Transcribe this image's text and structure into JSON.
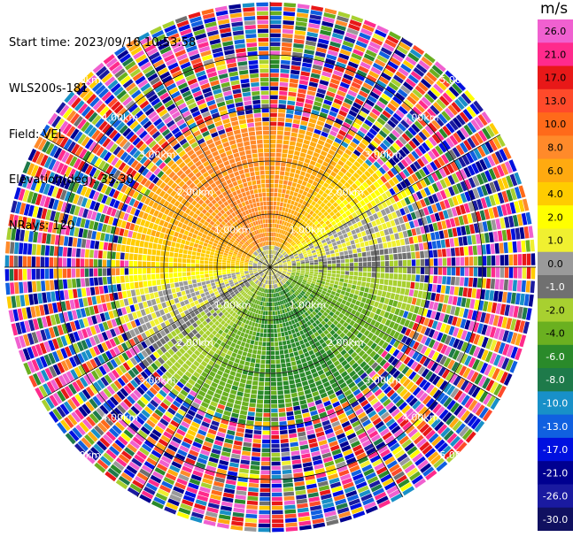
{
  "info": {
    "start_time": "Start time: 2023/09/16 10:53:58",
    "instrument": "WLS200s-181",
    "field": "Field: VEL",
    "elevation": "Elevation(deg): 35.30",
    "nrays": "NRays: 120"
  },
  "colorbar": {
    "unit": "m/s",
    "ticks": [
      "26.0",
      "21.0",
      "17.0",
      "13.0",
      "10.0",
      "8.0",
      "6.0",
      "4.0",
      "2.0",
      "1.0",
      "0.0",
      "-1.0",
      "-2.0",
      "-4.0",
      "-6.0",
      "-8.0",
      "-10.0",
      "-13.0",
      "-17.0",
      "-21.0",
      "-26.0",
      "-30.0"
    ],
    "colors": [
      "#f060d0",
      "#ff2a8c",
      "#e81818",
      "#ff4a2a",
      "#ff6a1a",
      "#ff8a2a",
      "#ffaa10",
      "#ffcc00",
      "#ffff00",
      "#f0f030",
      "#9a9a9a",
      "#707070",
      "#a8d030",
      "#6ab020",
      "#2a8a2a",
      "#1e7a4a",
      "#1890c8",
      "#1060e0",
      "#0010e0",
      "#000090",
      "#1a1aa0",
      "#101060"
    ]
  },
  "chart_data": {
    "type": "heatmap",
    "title": "",
    "field": "VEL",
    "units": "m/s",
    "nrays": 120,
    "elevation_deg": 35.3,
    "range_rings_km": [
      1.0,
      2.0,
      3.0,
      4.0
    ],
    "ring_labels": [
      "1.00km",
      "2.00km",
      "3.00km",
      "4.00km",
      "5.00km"
    ],
    "max_range_km": 5.0,
    "pattern": {
      "near_field": "positive velocities (yellow to orange, 1 to 6 m/s) toward the upper half, near zero (gray) band across the centre, negative velocities (light to dark green, -2 to -8 m/s) in the lower half",
      "far_field": "noisy values spanning the full colour scale beyond about 2.5 km"
    }
  }
}
